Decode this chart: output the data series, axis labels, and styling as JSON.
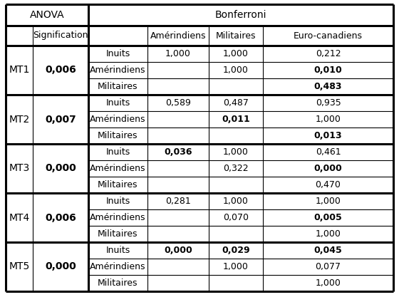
{
  "title_anova": "ANOVA",
  "title_bonferroni": "Bonferroni",
  "mt_labels": [
    "MT1",
    "MT2",
    "MT3",
    "MT4",
    "MT5"
  ],
  "anova_values": [
    "0,006",
    "0,007",
    "0,000",
    "0,006",
    "0,000"
  ],
  "row_labels": [
    "Inuits",
    "Amérindiens",
    "Militaires"
  ],
  "col_headers": [
    "Amérindiens",
    "Militaires",
    "Euro-canadiens"
  ],
  "table_data": [
    [
      [
        "1,000",
        "1,000",
        "0,212"
      ],
      [
        "",
        "1,000",
        "0,010"
      ],
      [
        "",
        "",
        "0,483"
      ]
    ],
    [
      [
        "0,589",
        "0,487",
        "0,935"
      ],
      [
        "",
        "0,011",
        "1,000"
      ],
      [
        "",
        "",
        "0,013"
      ]
    ],
    [
      [
        "0,036",
        "1,000",
        "0,461"
      ],
      [
        "",
        "0,322",
        "0,000"
      ],
      [
        "",
        "",
        "0,470"
      ]
    ],
    [
      [
        "0,281",
        "1,000",
        "1,000"
      ],
      [
        "",
        "0,070",
        "0,005"
      ],
      [
        "",
        "",
        "1,000"
      ]
    ],
    [
      [
        "0,000",
        "0,029",
        "0,045"
      ],
      [
        "",
        "1,000",
        "0,077"
      ],
      [
        "",
        "",
        "1,000"
      ]
    ]
  ],
  "bold_cells": [
    [
      [
        1,
        2
      ],
      [
        2,
        2
      ]
    ],
    [
      [
        1,
        1
      ],
      [
        2,
        2
      ]
    ],
    [
      [
        0,
        0
      ],
      [
        1,
        2
      ]
    ],
    [
      [
        1,
        2
      ]
    ],
    [
      [
        0,
        0
      ],
      [
        0,
        1
      ],
      [
        0,
        2
      ]
    ]
  ],
  "bg_color": "#ffffff",
  "text_color": "#000000"
}
